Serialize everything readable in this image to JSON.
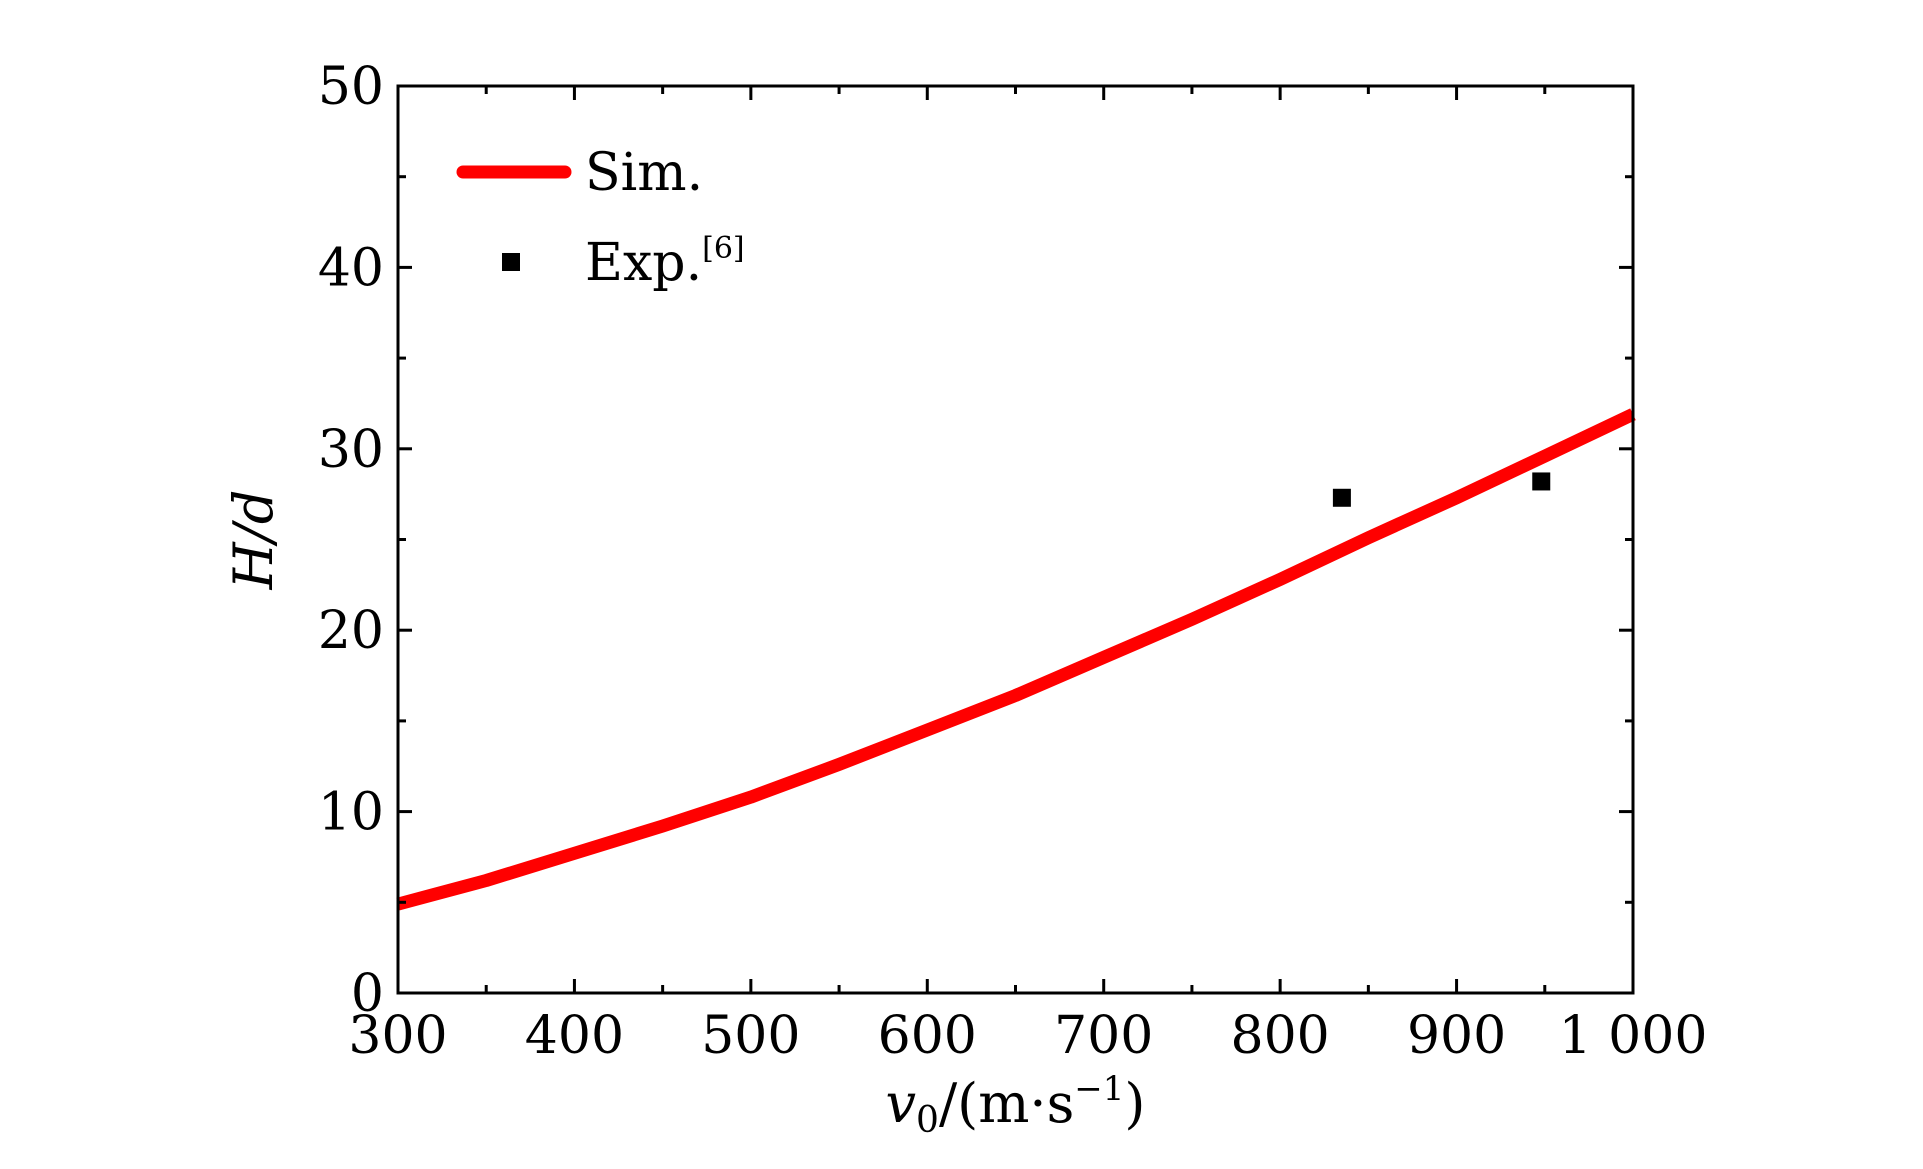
{
  "chart_data": {
    "type": "line",
    "title": "",
    "xlabel": {
      "var": "v",
      "sub": "0",
      "unit": "/(m·s",
      "sup": "−1",
      "close": ")"
    },
    "ylabel": "H/d",
    "xlim": [
      300,
      1000
    ],
    "ylim": [
      0,
      50
    ],
    "x_ticks": [
      {
        "value": 300,
        "label": "300"
      },
      {
        "value": 400,
        "label": "400"
      },
      {
        "value": 500,
        "label": "500"
      },
      {
        "value": 600,
        "label": "600"
      },
      {
        "value": 700,
        "label": "700"
      },
      {
        "value": 800,
        "label": "800"
      },
      {
        "value": 900,
        "label": "900"
      },
      {
        "value": 1000,
        "label": "1 000"
      }
    ],
    "y_ticks": [
      {
        "value": 0,
        "label": "0"
      },
      {
        "value": 10,
        "label": "10"
      },
      {
        "value": 20,
        "label": "20"
      },
      {
        "value": 30,
        "label": "30"
      },
      {
        "value": 40,
        "label": "40"
      },
      {
        "value": 50,
        "label": "50"
      }
    ],
    "grid": false,
    "legend_position": "top-left",
    "series": [
      {
        "name": "Sim.",
        "kind": "line",
        "color": "#ff0000",
        "x": [
          300,
          350,
          400,
          450,
          500,
          550,
          600,
          650,
          700,
          750,
          800,
          850,
          900,
          950,
          1000
        ],
        "y": [
          4.9,
          6.2,
          7.7,
          9.2,
          10.8,
          12.6,
          14.5,
          16.4,
          18.5,
          20.6,
          22.8,
          25.1,
          27.3,
          29.6,
          31.9
        ]
      },
      {
        "name": "Exp.",
        "name_sup": "[6]",
        "kind": "scatter",
        "marker": "square",
        "color": "#000000",
        "x": [
          835,
          948
        ],
        "y": [
          27.3,
          28.2
        ]
      }
    ]
  }
}
